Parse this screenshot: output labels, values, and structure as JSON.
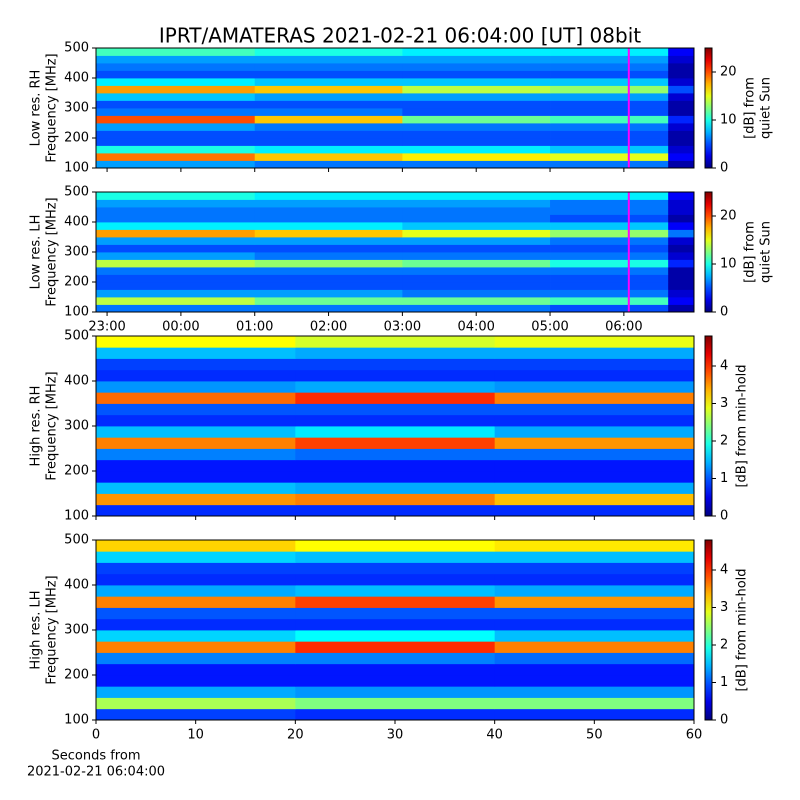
{
  "chart_data": [
    {
      "type": "heatmap",
      "title": "IPRT/AMATERAS 2021-02-21 06:04:00 [UT]   08bit",
      "ylabel": [
        "Low res. RH",
        "Frequency [MHz]"
      ],
      "x": [
        -1.15,
        1,
        3,
        5,
        6.6,
        6.95
      ],
      "y": [
        100,
        125,
        150,
        175,
        200,
        225,
        250,
        275,
        300,
        325,
        350,
        375,
        400,
        425,
        450,
        475,
        500
      ],
      "z": [
        [
          7,
          6,
          6,
          6,
          1
        ],
        [
          19,
          17,
          16,
          15,
          3
        ],
        [
          10,
          9,
          9,
          8,
          2
        ],
        [
          5,
          5,
          5,
          5,
          1
        ],
        [
          5,
          5,
          5,
          5,
          1
        ],
        [
          7,
          6,
          6,
          6,
          2
        ],
        [
          20,
          17,
          12,
          11,
          4
        ],
        [
          6,
          6,
          5,
          5,
          1
        ],
        [
          5,
          5,
          5,
          5,
          1
        ],
        [
          8,
          7,
          7,
          7,
          2
        ],
        [
          18,
          17,
          14,
          13,
          5
        ],
        [
          9,
          8,
          8,
          8,
          2
        ],
        [
          5,
          5,
          5,
          5,
          1
        ],
        [
          6,
          6,
          6,
          6,
          1
        ],
        [
          7,
          7,
          7,
          7,
          2
        ],
        [
          11,
          10,
          9,
          9,
          3
        ]
      ],
      "xlim": [
        -1.15,
        6.95
      ],
      "ylim": [
        100,
        500
      ],
      "xticks": [
        {
          "value": -1,
          "label": "23:00"
        },
        {
          "value": 0,
          "label": "00:00"
        },
        {
          "value": 1,
          "label": "01:00"
        },
        {
          "value": 2,
          "label": "02:00"
        },
        {
          "value": 3,
          "label": "03:00"
        },
        {
          "value": 4,
          "label": "04:00"
        },
        {
          "value": 5,
          "label": "05:00"
        },
        {
          "value": 6,
          "label": "06:00"
        }
      ],
      "xtick_labels": false,
      "yticks": [
        100,
        200,
        300,
        400,
        500
      ],
      "marker": {
        "x": 6.067,
        "color": "#ff00ff"
      },
      "colormap": "jet",
      "clim": [
        0,
        25
      ],
      "cticks": [
        0,
        10,
        20
      ],
      "clabel": [
        "[dB] from",
        "quiet Sun"
      ]
    },
    {
      "type": "heatmap",
      "ylabel": [
        "Low res. LH",
        "Frequency [MHz]"
      ],
      "x": [
        -1.15,
        1,
        3,
        5,
        6.6,
        6.95
      ],
      "y": [
        100,
        125,
        150,
        175,
        200,
        225,
        250,
        275,
        300,
        325,
        350,
        375,
        400,
        425,
        450,
        475,
        500
      ],
      "z": [
        [
          6,
          6,
          6,
          5,
          1
        ],
        [
          14,
          12,
          12,
          11,
          3
        ],
        [
          7,
          7,
          6,
          6,
          2
        ],
        [
          5,
          5,
          5,
          5,
          1
        ],
        [
          5,
          5,
          5,
          5,
          1
        ],
        [
          6,
          6,
          6,
          6,
          1
        ],
        [
          14,
          13,
          12,
          10,
          4
        ],
        [
          7,
          6,
          6,
          6,
          2
        ],
        [
          5,
          5,
          5,
          5,
          1
        ],
        [
          7,
          7,
          7,
          6,
          2
        ],
        [
          18,
          17,
          15,
          13,
          6
        ],
        [
          9,
          9,
          8,
          8,
          3
        ],
        [
          6,
          6,
          6,
          5,
          1
        ],
        [
          6,
          6,
          6,
          6,
          2
        ],
        [
          7,
          7,
          7,
          6,
          2
        ],
        [
          10,
          9,
          9,
          9,
          3
        ]
      ],
      "xlim": [
        -1.15,
        6.95
      ],
      "ylim": [
        100,
        500
      ],
      "xticks": [
        {
          "value": -1,
          "label": "23:00"
        },
        {
          "value": 0,
          "label": "00:00"
        },
        {
          "value": 1,
          "label": "01:00"
        },
        {
          "value": 2,
          "label": "02:00"
        },
        {
          "value": 3,
          "label": "03:00"
        },
        {
          "value": 4,
          "label": "04:00"
        },
        {
          "value": 5,
          "label": "05:00"
        },
        {
          "value": 6,
          "label": "06:00"
        }
      ],
      "xtick_labels": true,
      "yticks": [
        100,
        200,
        300,
        400,
        500
      ],
      "marker": {
        "x": 6.067,
        "color": "#ff00ff"
      },
      "colormap": "jet",
      "clim": [
        0,
        25
      ],
      "cticks": [
        0,
        10,
        20
      ],
      "clabel": [
        "[dB] from",
        "quiet Sun"
      ]
    },
    {
      "type": "heatmap",
      "ylabel": [
        "High res. RH",
        "Frequency [MHz]"
      ],
      "x": [
        0,
        20,
        40,
        60
      ],
      "y": [
        100,
        125,
        150,
        175,
        200,
        225,
        250,
        275,
        300,
        325,
        350,
        375,
        400,
        425,
        450,
        475,
        500
      ],
      "z": [
        [
          0.8,
          0.8,
          0.8
        ],
        [
          3.5,
          3.6,
          3.3
        ],
        [
          1.5,
          1.4,
          1.4
        ],
        [
          0.7,
          0.7,
          0.7
        ],
        [
          0.7,
          0.7,
          0.7
        ],
        [
          1.2,
          1.1,
          1.1
        ],
        [
          3.6,
          3.9,
          3.5
        ],
        [
          1.5,
          1.7,
          1.4
        ],
        [
          0.8,
          0.8,
          0.8
        ],
        [
          1.0,
          1.0,
          1.0
        ],
        [
          3.7,
          4.0,
          3.6
        ],
        [
          1.3,
          1.4,
          1.3
        ],
        [
          0.8,
          0.8,
          0.8
        ],
        [
          0.9,
          0.9,
          0.9
        ],
        [
          1.5,
          1.4,
          1.4
        ],
        [
          3.0,
          2.8,
          2.9
        ]
      ],
      "xlim": [
        0,
        60
      ],
      "ylim": [
        100,
        500
      ],
      "xticks": [
        0,
        10,
        20,
        30,
        40,
        50,
        60
      ],
      "xtick_labels": false,
      "yticks": [
        100,
        200,
        300,
        400,
        500
      ],
      "colormap": "jet",
      "clim": [
        0,
        4.8
      ],
      "cticks": [
        0,
        1,
        2,
        3,
        4
      ],
      "clabel": [
        "[dB] from min-hold"
      ]
    },
    {
      "type": "heatmap",
      "ylabel": [
        "High res. LH",
        "Frequency [MHz]"
      ],
      "xlabel": [
        "Seconds from",
        "2021-02-21 06:04:00"
      ],
      "x": [
        0,
        20,
        40,
        60
      ],
      "y": [
        100,
        125,
        150,
        175,
        200,
        225,
        250,
        275,
        300,
        325,
        350,
        375,
        400,
        425,
        450,
        475,
        500
      ],
      "z": [
        [
          0.9,
          0.8,
          0.8
        ],
        [
          2.6,
          2.4,
          2.4
        ],
        [
          1.4,
          1.3,
          1.3
        ],
        [
          0.7,
          0.7,
          0.7
        ],
        [
          0.7,
          0.7,
          0.7
        ],
        [
          1.2,
          1.2,
          1.1
        ],
        [
          3.6,
          4.0,
          3.6
        ],
        [
          1.6,
          1.8,
          1.5
        ],
        [
          0.8,
          0.8,
          0.8
        ],
        [
          1.0,
          1.0,
          1.0
        ],
        [
          3.6,
          3.9,
          3.5
        ],
        [
          1.4,
          1.5,
          1.4
        ],
        [
          0.8,
          0.8,
          0.8
        ],
        [
          0.9,
          0.9,
          0.9
        ],
        [
          1.6,
          1.5,
          1.5
        ],
        [
          3.2,
          3.0,
          3.1
        ]
      ],
      "xlim": [
        0,
        60
      ],
      "ylim": [
        100,
        500
      ],
      "xticks": [
        0,
        10,
        20,
        30,
        40,
        50,
        60
      ],
      "xtick_labels": true,
      "yticks": [
        100,
        200,
        300,
        400,
        500
      ],
      "colormap": "jet",
      "clim": [
        0,
        4.8
      ],
      "cticks": [
        0,
        1,
        2,
        3,
        4
      ],
      "clabel": [
        "[dB] from min-hold"
      ]
    }
  ]
}
